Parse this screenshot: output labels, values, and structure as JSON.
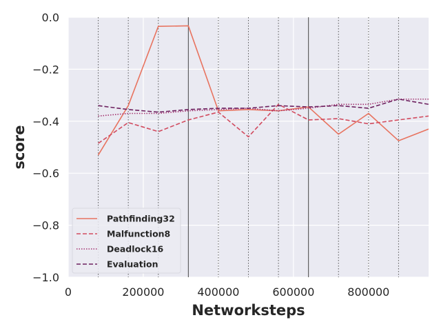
{
  "chart_data": {
    "type": "line",
    "title": "",
    "xlabel": "Networksteps",
    "ylabel": "score",
    "xlim": [
      0,
      960000
    ],
    "ylim": [
      -1.0,
      0.0
    ],
    "xticks": [
      0,
      200000,
      400000,
      600000,
      800000
    ],
    "xtick_labels": [
      "0",
      "200000",
      "400000",
      "600000",
      "800000"
    ],
    "yticks": [
      0.0,
      -0.2,
      -0.4,
      -0.6,
      -0.8,
      -1.0
    ],
    "ytick_labels": [
      "0.0",
      "−0.2",
      "−0.4",
      "−0.6",
      "−0.8",
      "−1.0"
    ],
    "grid": true,
    "legend_position": "bottom-left",
    "background": "#eaeaf2",
    "vertical_lines": {
      "dotted": [
        80000,
        160000,
        240000,
        400000,
        480000,
        560000,
        720000,
        800000,
        880000
      ],
      "solid": [
        320000,
        640000
      ]
    },
    "x": [
      80000,
      160000,
      240000,
      320000,
      400000,
      480000,
      560000,
      640000,
      720000,
      800000,
      880000,
      960000
    ],
    "series": [
      {
        "name": "Pathfinding32",
        "color": "#e8735f",
        "style": "solid",
        "values": [
          -0.53,
          -0.34,
          -0.035,
          -0.033,
          -0.36,
          -0.355,
          -0.36,
          -0.345,
          -0.45,
          -0.37,
          -0.475,
          -0.43
        ]
      },
      {
        "name": "Malfunction8",
        "color": "#d14a5e",
        "style": "dashed",
        "values": [
          -0.485,
          -0.405,
          -0.44,
          -0.395,
          -0.365,
          -0.46,
          -0.335,
          -0.395,
          -0.39,
          -0.41,
          -0.395,
          -0.38
        ]
      },
      {
        "name": "Deadlock16",
        "color": "#a3316f",
        "style": "dotted",
        "values": [
          -0.38,
          -0.37,
          -0.37,
          -0.36,
          -0.355,
          -0.35,
          -0.36,
          -0.35,
          -0.335,
          -0.335,
          -0.315,
          -0.315
        ]
      },
      {
        "name": "Evaluation",
        "color": "#6c1f5e",
        "style": "dashed",
        "values": [
          -0.34,
          -0.355,
          -0.365,
          -0.355,
          -0.35,
          -0.35,
          -0.34,
          -0.345,
          -0.34,
          -0.35,
          -0.315,
          -0.335
        ]
      }
    ]
  }
}
